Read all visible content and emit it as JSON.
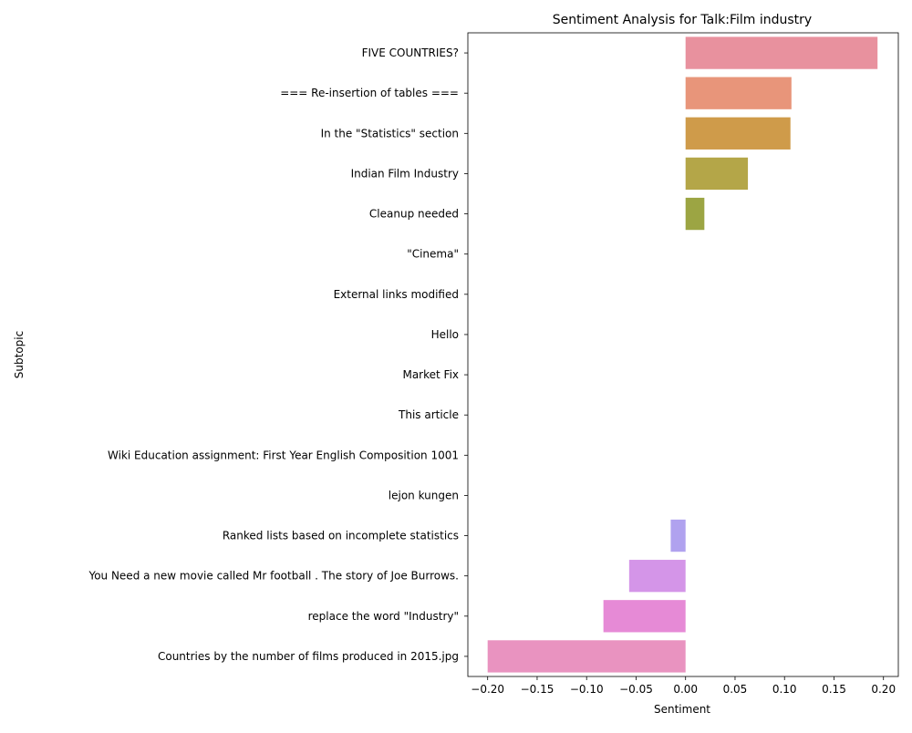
{
  "chart_data": {
    "type": "bar",
    "orientation": "horizontal",
    "title": "Sentiment Analysis for Talk:Film industry",
    "xlabel": "Sentiment",
    "ylabel": "Subtopic",
    "xlim": [
      -0.22,
      0.215
    ],
    "x_ticks": [
      -0.2,
      -0.15,
      -0.1,
      -0.05,
      0.0,
      0.05,
      0.1,
      0.15,
      0.2
    ],
    "x_tick_labels": [
      "−0.20",
      "−0.15",
      "−0.10",
      "−0.05",
      "0.00",
      "0.05",
      "0.10",
      "0.15",
      "0.20"
    ],
    "grid": false,
    "legend": "none",
    "categories": [
      "FIVE COUNTRIES?",
      "=== Re-insertion of tables ===",
      "In the \"Statistics\" section",
      "Indian Film Industry",
      "Cleanup needed",
      "\"Cinema\"",
      "External links modified",
      "Hello",
      "Market Fix",
      "This article",
      "Wiki Education assignment: First Year English Composition 1001",
      "lejon kungen",
      "Ranked lists based on incomplete statistics",
      "You Need a new movie called Mr football . The story of Joe Burrows.",
      "replace the word \"Industry\"",
      "Countries by the number of films produced in 2015.jpg"
    ],
    "values": [
      0.194,
      0.107,
      0.106,
      0.063,
      0.019,
      0.0,
      0.0,
      0.0,
      0.0,
      0.0,
      0.0,
      0.0,
      -0.015,
      -0.057,
      -0.083,
      -0.2
    ],
    "colors": [
      "#e8919e",
      "#e8957a",
      "#cf9b4a",
      "#b4a648",
      "#9ca543",
      "#6ab84f",
      "#55b57f",
      "#55b49a",
      "#57b3ab",
      "#58b2bc",
      "#5bafd0",
      "#7aa7ea",
      "#b0a2ef",
      "#d495e8",
      "#e68ad6",
      "#e993c0"
    ]
  }
}
